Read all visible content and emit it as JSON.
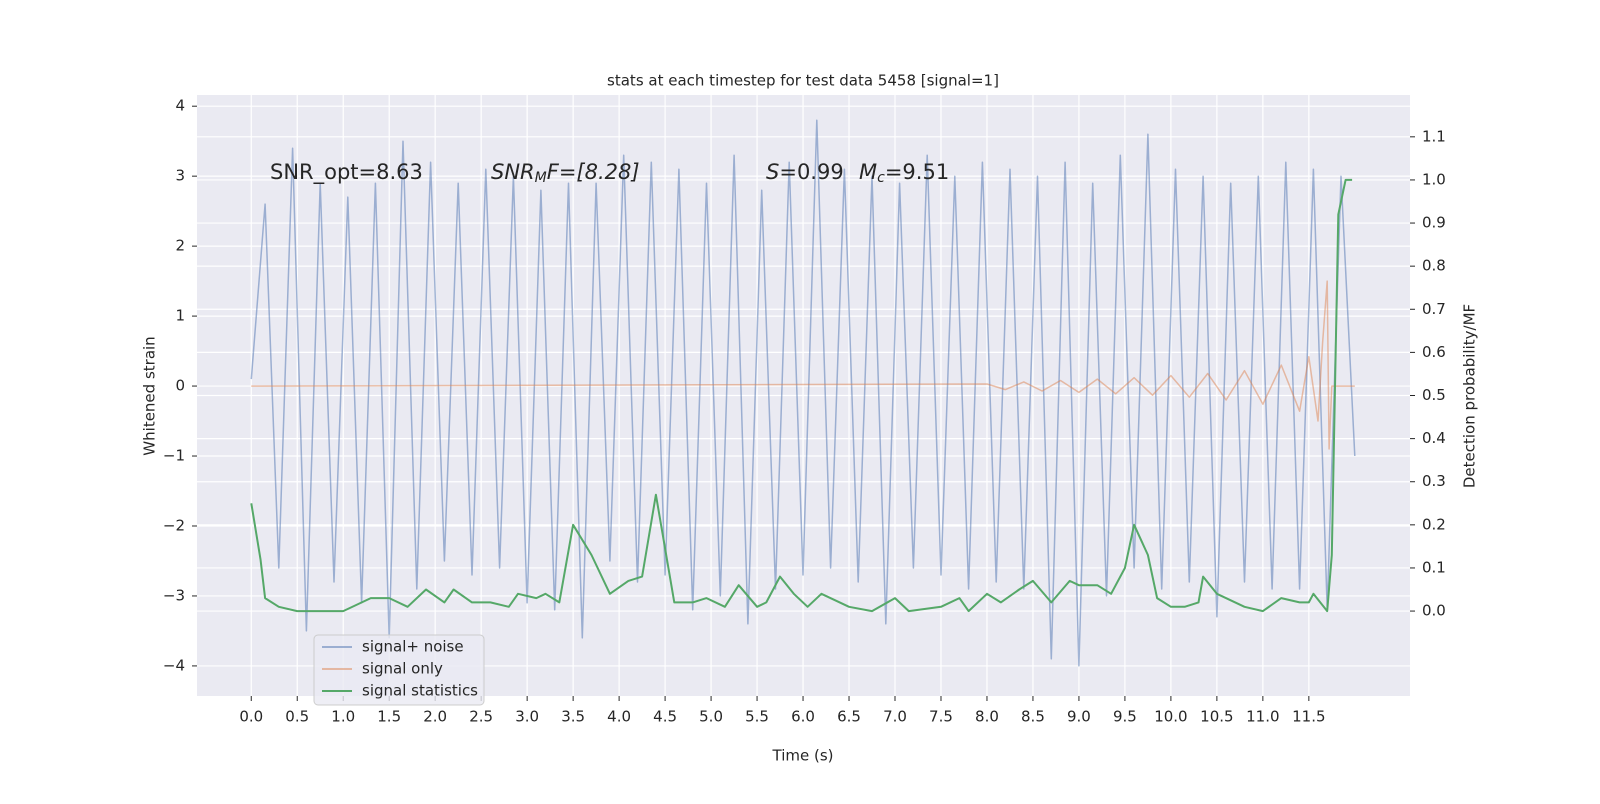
{
  "chart_data": {
    "type": "line",
    "title": "stats at each timestep for test data 5458 [signal=1]",
    "x_label": "Time (s)",
    "y_label": "Whitened strain",
    "y2_label": "Detection probability/MF",
    "xlim": [
      -0.59,
      12.6
    ],
    "ylim": [
      -4.43,
      4.16
    ],
    "y2lim": [
      -0.197,
      1.197
    ],
    "xticks": [
      {
        "value": 0,
        "label": "0.0"
      },
      {
        "value": 0.5,
        "label": "0.5"
      },
      {
        "value": 1,
        "label": "1.0"
      },
      {
        "value": 1.5,
        "label": "1.5"
      },
      {
        "value": 2,
        "label": "2.0"
      },
      {
        "value": 2.5,
        "label": "2.5"
      },
      {
        "value": 3,
        "label": "3.0"
      },
      {
        "value": 3.5,
        "label": "3.5"
      },
      {
        "value": 4,
        "label": "4.0"
      },
      {
        "value": 4.5,
        "label": "4.5"
      },
      {
        "value": 5,
        "label": "5.0"
      },
      {
        "value": 5.5,
        "label": "5.5"
      },
      {
        "value": 6,
        "label": "6.0"
      },
      {
        "value": 6.5,
        "label": "6.5"
      },
      {
        "value": 7,
        "label": "7.0"
      },
      {
        "value": 7.5,
        "label": "7.5"
      },
      {
        "value": 8,
        "label": "8.0"
      },
      {
        "value": 8.5,
        "label": "8.5"
      },
      {
        "value": 9,
        "label": "9.0"
      },
      {
        "value": 9.5,
        "label": "9.5"
      },
      {
        "value": 10,
        "label": "10.0"
      },
      {
        "value": 10.5,
        "label": "10.5"
      },
      {
        "value": 11,
        "label": "11.0"
      },
      {
        "value": 11.5,
        "label": "11.5"
      }
    ],
    "yticks": [
      {
        "value": -4,
        "label": "−4"
      },
      {
        "value": -3,
        "label": "−3"
      },
      {
        "value": -2,
        "label": "−2"
      },
      {
        "value": -1,
        "label": "−1"
      },
      0,
      1,
      2,
      3,
      4
    ],
    "y2ticks": [
      {
        "value": 0,
        "label": "0.0"
      },
      {
        "value": 0.1,
        "label": "0.1"
      },
      {
        "value": 0.2,
        "label": "0.2"
      },
      {
        "value": 0.3,
        "label": "0.3"
      },
      {
        "value": 0.4,
        "label": "0.4"
      },
      {
        "value": 0.5,
        "label": "0.5"
      },
      {
        "value": 0.6,
        "label": "0.6"
      },
      {
        "value": 0.7,
        "label": "0.7"
      },
      {
        "value": 0.8,
        "label": "0.8"
      },
      {
        "value": 0.9,
        "label": "0.9"
      },
      {
        "value": 1.0,
        "label": "1.0"
      },
      {
        "value": 1.1,
        "label": "1.1"
      }
    ],
    "grid": true,
    "legend": "lower left",
    "annotations": [
      {
        "parts": [
          "SNR_opt=8.63"
        ]
      },
      {
        "parts": [
          "SNR",
          "M",
          "F=[8.28]"
        ]
      },
      {
        "parts": [
          "S",
          "=0.99"
        ]
      },
      {
        "parts": [
          "M",
          "c",
          "=9.51"
        ]
      }
    ],
    "series": [
      {
        "name": "signal+ noise",
        "color": "#4c72b0",
        "opacity": 0.5,
        "x": [
          0.0,
          0.15,
          0.3,
          0.45,
          0.6,
          0.75,
          0.9,
          1.05,
          1.2,
          1.35,
          1.5,
          1.65,
          1.8,
          1.95,
          2.1,
          2.25,
          2.4,
          2.55,
          2.7,
          2.85,
          3.0,
          3.15,
          3.3,
          3.45,
          3.6,
          3.75,
          3.9,
          4.05,
          4.2,
          4.35,
          4.5,
          4.65,
          4.8,
          4.95,
          5.1,
          5.25,
          5.4,
          5.55,
          5.7,
          5.85,
          6.0,
          6.15,
          6.3,
          6.45,
          6.6,
          6.75,
          6.9,
          7.05,
          7.2,
          7.35,
          7.5,
          7.65,
          7.8,
          7.95,
          8.1,
          8.25,
          8.4,
          8.55,
          8.7,
          8.85,
          9.0,
          9.15,
          9.3,
          9.45,
          9.6,
          9.75,
          9.9,
          10.05,
          10.2,
          10.35,
          10.5,
          10.65,
          10.8,
          10.95,
          11.1,
          11.25,
          11.4,
          11.55,
          11.7,
          11.85,
          12.0
        ],
        "values": [
          0.1,
          2.6,
          -2.6,
          3.4,
          -3.5,
          2.9,
          -2.8,
          2.7,
          -3.1,
          2.9,
          -3.6,
          3.5,
          -2.9,
          3.2,
          -2.5,
          2.9,
          -2.7,
          3.1,
          -2.6,
          3.0,
          -3.1,
          2.8,
          -3.2,
          2.9,
          -3.6,
          2.9,
          -2.5,
          3.3,
          -2.8,
          3.2,
          -2.7,
          3.1,
          -3.2,
          2.9,
          -3.0,
          3.3,
          -3.4,
          2.8,
          -2.9,
          3.2,
          -2.7,
          3.8,
          -2.6,
          3.1,
          -2.8,
          3.0,
          -3.4,
          2.9,
          -2.6,
          3.3,
          -2.7,
          3.0,
          -2.9,
          3.2,
          -2.8,
          3.1,
          -2.9,
          3.0,
          -3.9,
          3.2,
          -4.0,
          2.9,
          -3.0,
          3.3,
          -2.6,
          3.6,
          -2.9,
          3.1,
          -2.8,
          3.0,
          -3.3,
          2.9,
          -2.8,
          3.0,
          -2.9,
          3.2,
          -2.9,
          3.1,
          -3.2,
          3.0,
          -1.0
        ]
      },
      {
        "name": "signal only",
        "color": "#dd8452",
        "opacity": 0.5,
        "x": [
          0.0,
          8.0,
          8.2,
          8.4,
          8.6,
          8.8,
          9.0,
          9.2,
          9.4,
          9.6,
          9.8,
          10.0,
          10.2,
          10.4,
          10.6,
          10.8,
          11.0,
          11.2,
          11.4,
          11.5,
          11.6,
          11.65,
          11.7,
          11.72,
          11.75,
          12.0
        ],
        "values": [
          0.0,
          0.03,
          -0.05,
          0.06,
          -0.07,
          0.08,
          -0.09,
          0.1,
          -0.11,
          0.12,
          -0.13,
          0.15,
          -0.16,
          0.18,
          -0.2,
          0.22,
          -0.26,
          0.3,
          -0.36,
          0.42,
          -0.5,
          0.62,
          1.5,
          -0.9,
          0.0,
          0.0
        ]
      },
      {
        "name": "signal statistics",
        "color": "#55a868",
        "opacity": 1,
        "axis": "y2",
        "x": [
          0.0,
          0.1,
          0.15,
          0.3,
          0.5,
          1.0,
          1.3,
          1.5,
          1.7,
          1.9,
          2.1,
          2.2,
          2.4,
          2.6,
          2.8,
          2.9,
          3.1,
          3.2,
          3.35,
          3.5,
          3.7,
          3.9,
          4.1,
          4.25,
          4.4,
          4.6,
          4.8,
          4.95,
          5.15,
          5.3,
          5.5,
          5.6,
          5.75,
          5.9,
          6.05,
          6.2,
          6.5,
          6.75,
          7.0,
          7.15,
          7.5,
          7.7,
          7.8,
          8.0,
          8.15,
          8.35,
          8.5,
          8.7,
          8.9,
          9.0,
          9.2,
          9.35,
          9.5,
          9.6,
          9.75,
          9.85,
          10.0,
          10.15,
          10.3,
          10.35,
          10.5,
          10.8,
          11.0,
          11.2,
          11.4,
          11.5,
          11.55,
          11.7,
          11.75,
          11.82,
          11.9,
          11.97
        ],
        "values": [
          0.25,
          0.12,
          0.03,
          0.01,
          0.0,
          0.0,
          0.03,
          0.03,
          0.01,
          0.05,
          0.02,
          0.05,
          0.02,
          0.02,
          0.01,
          0.04,
          0.03,
          0.04,
          0.02,
          0.2,
          0.13,
          0.04,
          0.07,
          0.08,
          0.27,
          0.02,
          0.02,
          0.03,
          0.01,
          0.06,
          0.01,
          0.02,
          0.08,
          0.04,
          0.01,
          0.04,
          0.01,
          0.0,
          0.03,
          0.0,
          0.01,
          0.03,
          0.0,
          0.04,
          0.02,
          0.05,
          0.07,
          0.02,
          0.07,
          0.06,
          0.06,
          0.04,
          0.1,
          0.2,
          0.13,
          0.03,
          0.01,
          0.01,
          0.02,
          0.08,
          0.04,
          0.01,
          0.0,
          0.03,
          0.02,
          0.02,
          0.04,
          0.0,
          0.13,
          0.92,
          1.0,
          1.0
        ]
      }
    ]
  }
}
